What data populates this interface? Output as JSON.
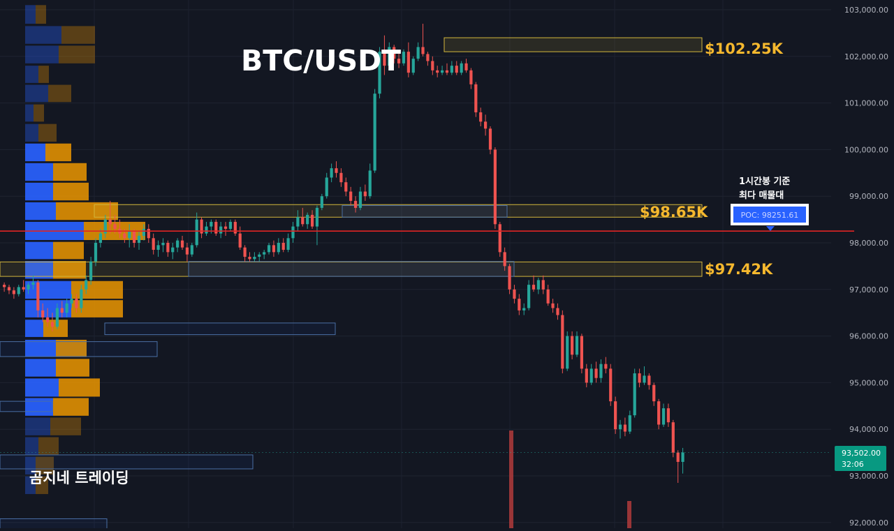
{
  "title": "BTC/USDT",
  "watermark": "곰지네 트레이딩",
  "price_axis": {
    "ticks": [
      "103,000.00",
      "102,000.00",
      "101,000.00",
      "100,000.00",
      "99,000.00",
      "98,000.00",
      "97,000.00",
      "96,000.00",
      "95,000.00",
      "94,000.00",
      "93,000.00",
      "92,000.00"
    ],
    "current_price": "93,502.00",
    "countdown": "32:06"
  },
  "colors": {
    "background": "#131722",
    "up": "#26a69a",
    "down": "#ef5350",
    "level_box": "#d4b73c",
    "level_text": "#f5b82e",
    "poc_line": "#e02424",
    "vp_blue": "#2962ff",
    "vp_orange": "#f29900"
  },
  "levels": [
    {
      "label": "$102.25K",
      "value": 102250
    },
    {
      "label": "$98.65K",
      "value": 98650
    },
    {
      "label": "$97.42K",
      "value": 97420
    }
  ],
  "poc": {
    "caption_line1": "1시간봉 기준",
    "caption_line2": "최다 매물대",
    "label": "POC: 98251.61",
    "value": 98251.61
  },
  "chart_data": {
    "type": "candlestick",
    "symbol": "BTC/USDT",
    "ylim": [
      91900,
      103300
    ],
    "grid": true,
    "candles": [
      [
        97100,
        97150,
        96950,
        97050
      ],
      [
        97050,
        97100,
        96900,
        96980
      ],
      [
        96980,
        97050,
        96800,
        96900
      ],
      [
        96900,
        97100,
        96850,
        97050
      ],
      [
        97050,
        97200,
        96950,
        97000
      ],
      [
        97000,
        97150,
        96900,
        97100
      ],
      [
        97100,
        97300,
        97000,
        97150
      ],
      [
        97150,
        97200,
        96400,
        96550
      ],
      [
        96550,
        96700,
        96300,
        96400
      ],
      [
        96400,
        96600,
        96200,
        96300
      ],
      [
        96300,
        96500,
        96100,
        96200
      ],
      [
        96200,
        96700,
        96150,
        96600
      ],
      [
        96600,
        96750,
        96400,
        96500
      ],
      [
        96500,
        96800,
        96400,
        96700
      ],
      [
        96700,
        96900,
        96600,
        96800
      ],
      [
        96800,
        96900,
        96500,
        96600
      ],
      [
        96600,
        97100,
        96500,
        97000
      ],
      [
        97000,
        97300,
        96900,
        97200
      ],
      [
        97200,
        97700,
        97100,
        97600
      ],
      [
        97600,
        98100,
        97500,
        98000
      ],
      [
        98000,
        98300,
        97900,
        98200
      ],
      [
        98200,
        98600,
        98100,
        98500
      ],
      [
        98500,
        98900,
        98200,
        98400
      ],
      [
        98400,
        98600,
        98200,
        98300
      ],
      [
        98300,
        98500,
        98100,
        98200
      ],
      [
        98200,
        98300,
        98000,
        98100
      ],
      [
        98100,
        98400,
        97900,
        98250
      ],
      [
        98250,
        98300,
        97900,
        98000
      ],
      [
        98000,
        98250,
        97850,
        98150
      ],
      [
        98150,
        98400,
        98050,
        98300
      ],
      [
        98300,
        98400,
        98000,
        98100
      ],
      [
        98100,
        98200,
        97750,
        97850
      ],
      [
        97850,
        98050,
        97700,
        97950
      ],
      [
        97950,
        98100,
        97800,
        98000
      ],
      [
        98000,
        98050,
        97700,
        97800
      ],
      [
        97800,
        98000,
        97650,
        97900
      ],
      [
        97900,
        98100,
        97800,
        98050
      ],
      [
        98050,
        98150,
        97850,
        97900
      ],
      [
        97900,
        98000,
        97600,
        97750
      ],
      [
        97750,
        98000,
        97700,
        97950
      ],
      [
        97950,
        98650,
        97900,
        98500
      ],
      [
        98500,
        98550,
        98100,
        98200
      ],
      [
        98200,
        98450,
        98150,
        98350
      ],
      [
        98350,
        98500,
        98200,
        98450
      ],
      [
        98450,
        98500,
        98150,
        98200
      ],
      [
        98200,
        98450,
        98100,
        98350
      ],
      [
        98350,
        98450,
        98150,
        98300
      ],
      [
        98300,
        98500,
        98250,
        98450
      ],
      [
        98450,
        98500,
        98150,
        98200
      ],
      [
        98200,
        98350,
        97850,
        97900
      ],
      [
        97900,
        97950,
        97600,
        97700
      ],
      [
        97700,
        97800,
        97600,
        97650
      ],
      [
        97650,
        97800,
        97600,
        97700
      ],
      [
        97700,
        97800,
        97600,
        97750
      ],
      [
        97750,
        97850,
        97650,
        97800
      ],
      [
        97800,
        98000,
        97750,
        97950
      ],
      [
        97950,
        98050,
        97700,
        97800
      ],
      [
        97800,
        98100,
        97750,
        98000
      ],
      [
        98000,
        98100,
        97800,
        97850
      ],
      [
        97850,
        98200,
        97800,
        98100
      ],
      [
        98100,
        98450,
        98000,
        98350
      ],
      [
        98350,
        98700,
        98250,
        98550
      ],
      [
        98550,
        98750,
        98350,
        98400
      ],
      [
        98400,
        98650,
        98300,
        98600
      ],
      [
        98600,
        98700,
        98300,
        98350
      ],
      [
        98350,
        98800,
        97950,
        98750
      ],
      [
        98750,
        99050,
        98700,
        99000
      ],
      [
        99000,
        99500,
        98950,
        99400
      ],
      [
        99400,
        99700,
        99300,
        99600
      ],
      [
        99600,
        99750,
        99400,
        99500
      ],
      [
        99500,
        99600,
        99200,
        99300
      ],
      [
        99300,
        99400,
        99000,
        99100
      ],
      [
        99100,
        99200,
        98800,
        98900
      ],
      [
        98900,
        99000,
        98650,
        98750
      ],
      [
        98750,
        99200,
        98700,
        99100
      ],
      [
        99100,
        99250,
        98900,
        99000
      ],
      [
        99000,
        99700,
        98950,
        99550
      ],
      [
        99550,
        101300,
        99500,
        101200
      ],
      [
        101200,
        102200,
        101100,
        102100
      ],
      [
        102100,
        102450,
        101600,
        101800
      ],
      [
        101800,
        102300,
        101700,
        102200
      ],
      [
        102200,
        102250,
        101850,
        101950
      ],
      [
        101950,
        102100,
        101750,
        101850
      ],
      [
        101850,
        102150,
        101800,
        102100
      ],
      [
        102100,
        102300,
        101550,
        101650
      ],
      [
        101650,
        102000,
        101600,
        101950
      ],
      [
        101950,
        102300,
        101900,
        102200
      ],
      [
        102200,
        102700,
        102000,
        102050
      ],
      [
        102050,
        102100,
        101800,
        101900
      ],
      [
        101900,
        102000,
        101600,
        101700
      ],
      [
        101700,
        101800,
        101550,
        101650
      ],
      [
        101650,
        101800,
        101600,
        101700
      ],
      [
        101700,
        101850,
        101600,
        101650
      ],
      [
        101650,
        101900,
        101600,
        101800
      ],
      [
        101800,
        101900,
        101600,
        101650
      ],
      [
        101650,
        101900,
        101600,
        101850
      ],
      [
        101850,
        101950,
        101650,
        101700
      ],
      [
        101700,
        101750,
        101300,
        101400
      ],
      [
        101400,
        101450,
        100700,
        100800
      ],
      [
        100800,
        100900,
        100500,
        100600
      ],
      [
        100600,
        100750,
        100300,
        100450
      ],
      [
        100450,
        100500,
        99900,
        100000
      ],
      [
        100000,
        100050,
        98300,
        98400
      ],
      [
        98400,
        98450,
        97700,
        97800
      ],
      [
        97800,
        97900,
        97400,
        97500
      ],
      [
        97500,
        97550,
        96900,
        97000
      ],
      [
        97000,
        97100,
        96700,
        96800
      ],
      [
        96800,
        96900,
        96450,
        96550
      ],
      [
        96550,
        96700,
        96450,
        96600
      ],
      [
        96600,
        97200,
        96550,
        97100
      ],
      [
        97100,
        97300,
        96950,
        97000
      ],
      [
        97000,
        97250,
        96900,
        97200
      ],
      [
        97200,
        97300,
        96900,
        97000
      ],
      [
        97000,
        97100,
        96650,
        96700
      ],
      [
        96700,
        96800,
        96500,
        96600
      ],
      [
        96600,
        96700,
        96350,
        96450
      ],
      [
        96450,
        96550,
        95200,
        95300
      ],
      [
        95300,
        96100,
        95250,
        96000
      ],
      [
        96000,
        96100,
        95500,
        95600
      ],
      [
        95600,
        96100,
        95550,
        96000
      ],
      [
        96000,
        96050,
        95200,
        95300
      ],
      [
        95300,
        95400,
        94900,
        95000
      ],
      [
        95000,
        95400,
        94950,
        95300
      ],
      [
        95300,
        95450,
        95000,
        95100
      ],
      [
        95100,
        95500,
        95000,
        95400
      ],
      [
        95400,
        95550,
        95200,
        95300
      ],
      [
        95300,
        95400,
        94500,
        94600
      ],
      [
        94600,
        94700,
        93900,
        94000
      ],
      [
        94000,
        94200,
        93800,
        94100
      ],
      [
        94100,
        94250,
        93850,
        93950
      ],
      [
        93950,
        94400,
        93900,
        94300
      ],
      [
        94300,
        95300,
        94250,
        95200
      ],
      [
        95200,
        95300,
        94900,
        95000
      ],
      [
        95000,
        95350,
        94950,
        95150
      ],
      [
        95150,
        95200,
        94850,
        94950
      ],
      [
        94950,
        95000,
        94500,
        94600
      ],
      [
        94600,
        94650,
        94000,
        94100
      ],
      [
        94100,
        94550,
        94050,
        94450
      ],
      [
        94450,
        94550,
        94050,
        94150
      ],
      [
        94150,
        94200,
        93400,
        93500
      ],
      [
        93500,
        93550,
        92850,
        93300
      ],
      [
        93300,
        93600,
        93050,
        93502
      ]
    ],
    "volume_profile": [
      {
        "price_low": 102700,
        "price_high": 103100,
        "buy": 0.15,
        "sell": 0.15,
        "faded": true
      },
      {
        "price_low": 102270,
        "price_high": 102650,
        "buy": 0.52,
        "sell": 0.48,
        "faded": true
      },
      {
        "price_low": 101850,
        "price_high": 102230,
        "buy": 0.48,
        "sell": 0.52,
        "faded": true
      },
      {
        "price_low": 101430,
        "price_high": 101800,
        "buy": 0.19,
        "sell": 0.15,
        "faded": true
      },
      {
        "price_low": 101020,
        "price_high": 101390,
        "buy": 0.33,
        "sell": 0.33,
        "faded": true
      },
      {
        "price_low": 100600,
        "price_high": 100970,
        "buy": 0.12,
        "sell": 0.15,
        "faded": true
      },
      {
        "price_low": 100170,
        "price_high": 100550,
        "buy": 0.19,
        "sell": 0.26,
        "faded": true
      },
      {
        "price_low": 99750,
        "price_high": 100130,
        "buy": 0.29,
        "sell": 0.37,
        "faded": false
      },
      {
        "price_low": 99330,
        "price_high": 99710,
        "buy": 0.4,
        "sell": 0.48,
        "faded": false
      },
      {
        "price_low": 98910,
        "price_high": 99290,
        "buy": 0.4,
        "sell": 0.51,
        "faded": false
      },
      {
        "price_low": 98490,
        "price_high": 98870,
        "buy": 0.44,
        "sell": 0.89,
        "faded": false
      },
      {
        "price_low": 98060,
        "price_high": 98450,
        "buy": 0.84,
        "sell": 0.88,
        "faded": false
      },
      {
        "price_low": 97650,
        "price_high": 98020,
        "buy": 0.4,
        "sell": 0.44,
        "faded": false
      },
      {
        "price_low": 97230,
        "price_high": 97610,
        "buy": 0.4,
        "sell": 0.47,
        "faded": false
      },
      {
        "price_low": 96800,
        "price_high": 97180,
        "buy": 0.66,
        "sell": 0.74,
        "faded": false
      },
      {
        "price_low": 96400,
        "price_high": 96770,
        "buy": 0.66,
        "sell": 0.74,
        "faded": false
      },
      {
        "price_low": 95980,
        "price_high": 96350,
        "buy": 0.26,
        "sell": 0.35,
        "faded": false
      },
      {
        "price_low": 95550,
        "price_high": 95920,
        "buy": 0.44,
        "sell": 0.44,
        "faded": false
      },
      {
        "price_low": 95130,
        "price_high": 95510,
        "buy": 0.44,
        "sell": 0.48,
        "faded": false
      },
      {
        "price_low": 94700,
        "price_high": 95090,
        "buy": 0.48,
        "sell": 0.59,
        "faded": false
      },
      {
        "price_low": 94290,
        "price_high": 94670,
        "buy": 0.4,
        "sell": 0.51,
        "faded": false
      },
      {
        "price_low": 93870,
        "price_high": 94250,
        "buy": 0.36,
        "sell": 0.44,
        "faded": true
      },
      {
        "price_low": 93450,
        "price_high": 93830,
        "buy": 0.19,
        "sell": 0.29,
        "faded": true
      },
      {
        "price_low": 93030,
        "price_high": 93410,
        "buy": 0.15,
        "sell": 0.26,
        "faded": true
      },
      {
        "price_low": 92610,
        "price_high": 92990,
        "buy": 0.15,
        "sell": 0.18,
        "faded": true
      }
    ]
  }
}
